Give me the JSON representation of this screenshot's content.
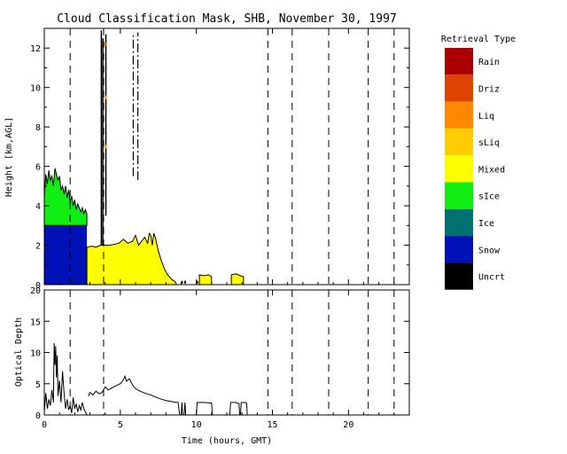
{
  "chart_data": [
    {
      "type": "area",
      "panel": "top",
      "title": "Cloud Classification Mask, SHB, November 30, 1997",
      "ylabel": "Height [km,AGL]",
      "xlim": [
        0,
        24
      ],
      "ylim": [
        0,
        13
      ],
      "xticks": [
        0,
        5,
        10,
        15,
        20
      ],
      "yticks": [
        0,
        2,
        4,
        6,
        8,
        10,
        12
      ],
      "dashed_vertical_lines": [
        1.7,
        3.9,
        14.7,
        16.3,
        18.7,
        21.3,
        23.0
      ],
      "series": [
        {
          "name": "Snow",
          "color": "#0011b8",
          "segments": [
            {
              "x": [
                0,
                2.8
              ],
              "bottom": 0,
              "top": 3.0
            }
          ]
        },
        {
          "name": "sIce",
          "color": "#11ee11",
          "points": [
            [
              0,
              4.4
            ],
            [
              0.1,
              5.6
            ],
            [
              0.2,
              5.1
            ],
            [
              0.3,
              5.8
            ],
            [
              0.4,
              5.3
            ],
            [
              0.5,
              5.5
            ],
            [
              0.6,
              5.0
            ],
            [
              0.7,
              5.9
            ],
            [
              0.8,
              5.6
            ],
            [
              0.9,
              5.3
            ],
            [
              1.0,
              5.5
            ],
            [
              1.1,
              4.8
            ],
            [
              1.2,
              5.0
            ],
            [
              1.3,
              4.6
            ],
            [
              1.4,
              5.0
            ],
            [
              1.5,
              4.4
            ],
            [
              1.6,
              4.8
            ],
            [
              1.7,
              4.2
            ],
            [
              1.8,
              4.5
            ],
            [
              1.9,
              4.0
            ],
            [
              2.0,
              4.3
            ],
            [
              2.1,
              3.8
            ],
            [
              2.2,
              4.1
            ],
            [
              2.3,
              3.9
            ],
            [
              2.4,
              3.7
            ],
            [
              2.5,
              3.9
            ],
            [
              2.6,
              3.6
            ],
            [
              2.7,
              3.8
            ],
            [
              2.8,
              3.6
            ]
          ],
          "base": 3.0
        },
        {
          "name": "Mixed",
          "color": "#ffff00",
          "segments": [
            {
              "points": [
                [
                  2.8,
                  1.9
                ],
                [
                  3.1,
                  1.95
                ],
                [
                  3.4,
                  1.9
                ],
                [
                  3.7,
                  2.0
                ],
                [
                  4.0,
                  2.0
                ],
                [
                  4.3,
                  2.0
                ],
                [
                  4.6,
                  2.05
                ],
                [
                  4.9,
                  2.1
                ],
                [
                  5.2,
                  2.3
                ],
                [
                  5.5,
                  2.1
                ],
                [
                  5.8,
                  2.2
                ],
                [
                  6.0,
                  2.5
                ],
                [
                  6.2,
                  2.0
                ],
                [
                  6.4,
                  2.2
                ],
                [
                  6.6,
                  2.4
                ],
                [
                  6.8,
                  2.1
                ],
                [
                  6.9,
                  2.6
                ],
                [
                  7.0,
                  2.5
                ],
                [
                  7.1,
                  2.0
                ],
                [
                  7.2,
                  2.6
                ],
                [
                  7.3,
                  2.4
                ],
                [
                  7.5,
                  1.7
                ],
                [
                  7.7,
                  1.2
                ],
                [
                  7.9,
                  0.8
                ],
                [
                  8.1,
                  0.5
                ],
                [
                  8.4,
                  0.25
                ],
                [
                  8.6,
                  0.15
                ],
                [
                  8.7,
                  0.0
                ]
              ]
            },
            {
              "points": [
                [
                  10.2,
                  0.0
                ],
                [
                  10.2,
                  0.5
                ],
                [
                  10.5,
                  0.45
                ],
                [
                  10.8,
                  0.5
                ],
                [
                  11.0,
                  0.4
                ],
                [
                  11.0,
                  0.0
                ]
              ]
            },
            {
              "points": [
                [
                  12.3,
                  0.0
                ],
                [
                  12.3,
                  0.5
                ],
                [
                  12.6,
                  0.55
                ],
                [
                  12.9,
                  0.45
                ],
                [
                  13.1,
                  0.4
                ],
                [
                  13.1,
                  0.0
                ]
              ]
            }
          ],
          "specks": [
            [
              9.0,
              0.1
            ],
            [
              9.2,
              0.1
            ],
            [
              10.0,
              0.1
            ]
          ]
        },
        {
          "name": "Uncrt",
          "color": "#000000",
          "columns": [
            {
              "x": 3.75,
              "from": 2.0,
              "to": 12.9
            },
            {
              "x": 3.85,
              "from": 2.0,
              "to": 12.5
            },
            {
              "x": 4.05,
              "from": 3.5,
              "to": 12.7
            }
          ],
          "dashed_columns": [
            {
              "x": 5.85,
              "from": 5.5,
              "to": 12.8
            },
            {
              "x": 6.15,
              "from": 5.3,
              "to": 12.8
            }
          ]
        },
        {
          "name": "Liq",
          "color": "#ff8800",
          "points": [
            [
              4.0,
              12.2
            ],
            [
              4.05,
              9.5
            ],
            [
              4.05,
              7.0
            ]
          ]
        }
      ]
    },
    {
      "type": "line",
      "panel": "bottom",
      "xlabel": "Time (hours, GMT)",
      "ylabel": "Optical Depth",
      "xlim": [
        0,
        24
      ],
      "ylim": [
        0,
        20
      ],
      "xticks": [
        0,
        5,
        10,
        15,
        20
      ],
      "yticks": [
        0,
        5,
        10,
        15,
        20
      ],
      "dashed_vertical_lines": [
        1.7,
        3.9,
        14.7,
        16.3,
        18.7,
        21.3,
        23.0
      ],
      "series": [
        {
          "segments": [
            [
              [
                0,
                0.5
              ],
              [
                0.1,
                3.5
              ],
              [
                0.2,
                1.0
              ],
              [
                0.3,
                2.5
              ],
              [
                0.4,
                1.5
              ],
              [
                0.5,
                4.0
              ],
              [
                0.6,
                2.0
              ],
              [
                0.65,
                11.5
              ],
              [
                0.7,
                8.0
              ],
              [
                0.75,
                11.0
              ],
              [
                0.8,
                6.0
              ],
              [
                0.85,
                9.5
              ],
              [
                0.9,
                3.0
              ],
              [
                1.0,
                5.5
              ],
              [
                1.1,
                2.0
              ],
              [
                1.2,
                7.0
              ],
              [
                1.3,
                3.5
              ],
              [
                1.4,
                1.0
              ],
              [
                1.5,
                2.5
              ],
              [
                1.6,
                0.8
              ],
              [
                1.7,
                1.5
              ],
              [
                1.8,
                0.3
              ],
              [
                1.9,
                2.8
              ],
              [
                2.0,
                1.0
              ],
              [
                2.1,
                1.8
              ],
              [
                2.2,
                0.5
              ],
              [
                2.3,
                1.5
              ],
              [
                2.4,
                0.8
              ],
              [
                2.5,
                2.0
              ],
              [
                2.6,
                1.0
              ],
              [
                2.7,
                0.5
              ],
              [
                2.8,
                0.0
              ]
            ],
            [
              [
                2.9,
                3.0
              ],
              [
                3.0,
                3.6
              ],
              [
                3.2,
                3.2
              ],
              [
                3.4,
                3.8
              ],
              [
                3.6,
                3.4
              ],
              [
                3.8,
                3.6
              ],
              [
                4.0,
                4.5
              ],
              [
                4.2,
                4.0
              ],
              [
                4.5,
                4.4
              ],
              [
                4.8,
                4.8
              ],
              [
                5.0,
                5.0
              ],
              [
                5.2,
                5.6
              ],
              [
                5.3,
                6.2
              ],
              [
                5.4,
                5.4
              ],
              [
                5.6,
                5.8
              ],
              [
                5.8,
                4.8
              ],
              [
                6.0,
                4.2
              ],
              [
                6.3,
                3.8
              ],
              [
                6.6,
                3.5
              ],
              [
                7.0,
                3.2
              ],
              [
                7.3,
                2.9
              ],
              [
                7.6,
                2.6
              ],
              [
                8.0,
                2.3
              ],
              [
                8.5,
                2.1
              ],
              [
                8.8,
                2.0
              ],
              [
                8.9,
                0.0
              ]
            ],
            [
              [
                9.0,
                0.0
              ],
              [
                9.05,
                2.0
              ],
              [
                9.1,
                0.0
              ]
            ],
            [
              [
                9.2,
                0.0
              ],
              [
                9.25,
                2.0
              ],
              [
                9.3,
                0.0
              ]
            ],
            [
              [
                10.0,
                0.0
              ],
              [
                10.05,
                2.0
              ],
              [
                10.5,
                2.0
              ],
              [
                11.0,
                1.9
              ],
              [
                11.05,
                0.0
              ]
            ],
            [
              [
                12.2,
                0.0
              ],
              [
                12.25,
                2.0
              ],
              [
                12.6,
                2.0
              ],
              [
                12.8,
                1.8
              ],
              [
                12.85,
                0.0
              ]
            ],
            [
              [
                12.9,
                0.0
              ],
              [
                12.95,
                2.0
              ],
              [
                13.2,
                2.0
              ],
              [
                13.3,
                1.9
              ],
              [
                13.35,
                0.0
              ]
            ]
          ]
        }
      ]
    }
  ],
  "legend": {
    "title": "Retrieval Type",
    "items": [
      {
        "label": "Rain",
        "color": "#aa0000"
      },
      {
        "label": "Driz",
        "color": "#dd4400"
      },
      {
        "label": "Liq",
        "color": "#ff8800"
      },
      {
        "label": "sLiq",
        "color": "#ffcc00"
      },
      {
        "label": "Mixed",
        "color": "#ffff00"
      },
      {
        "label": "sIce",
        "color": "#11ee11"
      },
      {
        "label": "Ice",
        "color": "#007070"
      },
      {
        "label": "Snow",
        "color": "#0011b8"
      },
      {
        "label": "Uncrt",
        "color": "#000000"
      }
    ]
  }
}
